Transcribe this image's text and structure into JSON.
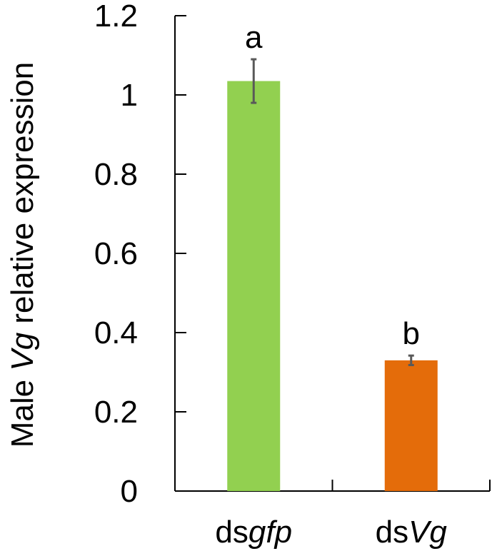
{
  "chart_data": {
    "type": "bar",
    "ylabel": {
      "prefix": "Male ",
      "italic": "Vg",
      "suffix": " relative expression"
    },
    "categories": [
      {
        "prefix": "ds",
        "italic": "gfp"
      },
      {
        "prefix": "ds",
        "italic": "Vg"
      }
    ],
    "values": [
      1.035,
      0.33
    ],
    "errors": [
      0.055,
      0.012
    ],
    "significance": [
      "a",
      "b"
    ],
    "colors": [
      "#92d050",
      "#e46c0a"
    ],
    "ylim": [
      0,
      1.2
    ],
    "yticks": [
      "0",
      "0.2",
      "0.4",
      "0.6",
      "0.8",
      "1",
      "1.2"
    ],
    "grid": false,
    "legend": "none"
  }
}
